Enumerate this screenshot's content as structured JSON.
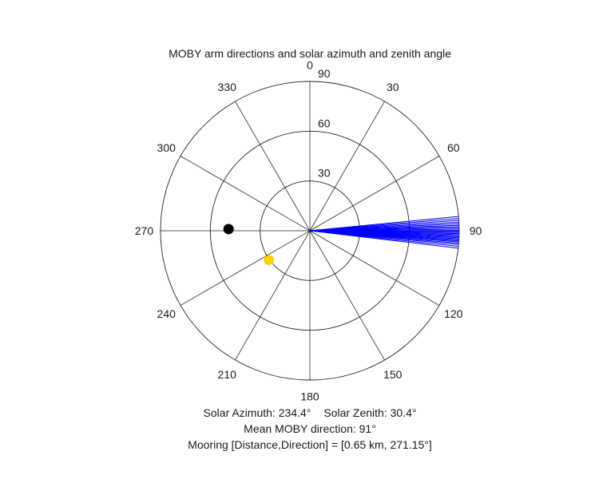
{
  "chart_data": {
    "type": "polar",
    "title": "MOBY arm directions and solar azimuth and zenith angle",
    "theta_zero": "top",
    "theta_direction": "clockwise",
    "theta_ticks": [
      0,
      30,
      60,
      90,
      120,
      150,
      180,
      210,
      240,
      270,
      300,
      330
    ],
    "theta_tick_labels": [
      "0",
      "30",
      "60",
      "90",
      "120",
      "150",
      "180",
      "210",
      "240",
      "270",
      "300",
      "330"
    ],
    "r_range": [
      0,
      90
    ],
    "r_ticks": [
      30,
      60,
      90
    ],
    "r_tick_labels": [
      "30",
      "60",
      "90"
    ],
    "grid": true,
    "arm_lines": {
      "color": "#0000ff",
      "r": 90,
      "directions_deg": [
        84.5,
        85.3,
        86.0,
        86.7,
        87.3,
        87.9,
        88.4,
        88.9,
        89.4,
        89.9,
        90.3,
        90.7,
        91.1,
        91.5,
        91.9,
        92.3,
        92.7,
        93.1,
        93.5,
        93.9,
        94.3,
        94.8,
        95.3,
        96.0,
        96.7
      ]
    },
    "mooring_point": {
      "theta_deg": 271.15,
      "r": 49,
      "color": "#000000"
    },
    "sun_point": {
      "theta_deg": 234.4,
      "r": 30.4,
      "color": "#ffd700"
    }
  },
  "captions": {
    "line1_part1": "Solar Azimuth: 234.4°",
    "line1_part2": "Solar Zenith: 30.4°",
    "line2": "Mean MOBY direction: 91°",
    "line3": "Mooring [Distance,Direction] = [0.65 km, 271.15°]"
  }
}
